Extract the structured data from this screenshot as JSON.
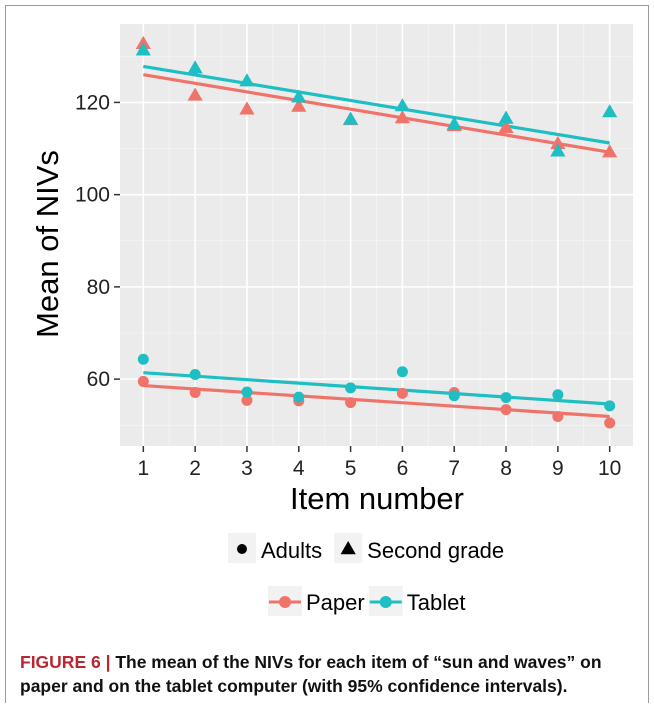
{
  "chart_data": {
    "type": "scatter",
    "xlabel": "Item number",
    "ylabel": "Mean of NIVs",
    "xlim": [
      0.55,
      10.45
    ],
    "ylim": [
      45.5,
      137
    ],
    "x_ticks": [
      1,
      2,
      3,
      4,
      5,
      6,
      7,
      8,
      9,
      10
    ],
    "y_ticks": [
      60,
      80,
      100,
      120
    ],
    "grid": true,
    "background": "#ebebeb",
    "colors": {
      "Paper": "#f0736a",
      "Tablet": "#1ebec3"
    },
    "series": [
      {
        "device": "Paper",
        "group": "Second grade",
        "marker": "triangle",
        "x": [
          1,
          2,
          3,
          4,
          5,
          6,
          7,
          8,
          9,
          10
        ],
        "values": [
          132.7,
          121.5,
          118.5,
          119.1,
          116.2,
          116.6,
          114.9,
          114.5,
          111.0,
          109.2
        ],
        "fit": [
          126.0,
          109.2
        ]
      },
      {
        "device": "Tablet",
        "group": "Second grade",
        "marker": "triangle",
        "x": [
          1,
          2,
          3,
          4,
          5,
          6,
          7,
          8,
          9,
          10
        ],
        "values": [
          131.3,
          127.4,
          124.6,
          121.1,
          116.3,
          119.2,
          115.2,
          116.5,
          109.4,
          117.9
        ],
        "fit": [
          127.8,
          111.2
        ]
      },
      {
        "device": "Paper",
        "group": "Adults",
        "marker": "circle",
        "x": [
          1,
          2,
          3,
          4,
          5,
          6,
          7,
          8,
          9,
          10
        ],
        "values": [
          59.5,
          57.1,
          55.4,
          55.3,
          54.9,
          56.9,
          57.1,
          53.4,
          51.9,
          50.5
        ],
        "fit": [
          58.6,
          51.9
        ]
      },
      {
        "device": "Tablet",
        "group": "Adults",
        "marker": "circle",
        "x": [
          1,
          2,
          3,
          4,
          5,
          6,
          7,
          8,
          9,
          10
        ],
        "values": [
          64.3,
          61.0,
          57.2,
          56.1,
          58.1,
          61.6,
          56.4,
          56.0,
          56.6,
          54.2
        ],
        "fit": [
          61.4,
          54.6
        ]
      }
    ],
    "legend": {
      "placement": "bottom",
      "shape_items": [
        {
          "label": "Adults",
          "marker": "circle"
        },
        {
          "label": "Second grade",
          "marker": "triangle"
        }
      ],
      "color_items": [
        {
          "label": "Paper",
          "color": "#f0736a"
        },
        {
          "label": "Tablet",
          "color": "#1ebec3"
        }
      ]
    }
  },
  "caption": {
    "label": "FIGURE 6 | ",
    "text": "The mean of the NIVs for each item of “sun and waves” on paper and on the tablet computer (with 95% confidence intervals)."
  }
}
